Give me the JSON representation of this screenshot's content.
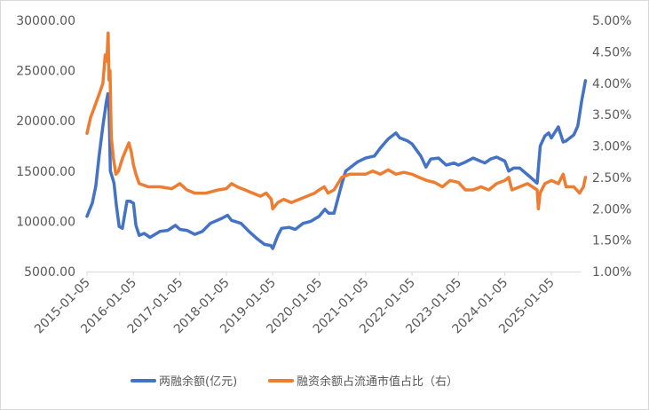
{
  "chart_data": {
    "type": "line",
    "title": "",
    "xlabel": "",
    "ylabel": "",
    "x_ticks": [
      "2015-01-05",
      "2016-01-05",
      "2017-01-05",
      "2018-01-05",
      "2019-01-05",
      "2020-01-05",
      "2021-01-05",
      "2022-01-05",
      "2023-01-05",
      "2024-01-05",
      "2025-01-05"
    ],
    "y_left_ticks": [
      "5000.00",
      "10000.00",
      "15000.00",
      "20000.00",
      "25000.00",
      "30000.00"
    ],
    "y_right_ticks": [
      "1.00%",
      "1.50%",
      "2.00%",
      "2.50%",
      "3.00%",
      "3.50%",
      "4.00%",
      "4.50%",
      "5.00%"
    ],
    "ylim_left": [
      5000,
      30000
    ],
    "ylim_right": [
      1.0,
      5.0
    ],
    "grid": false,
    "legend_position": "bottom",
    "series": [
      {
        "name": "两融余额(亿元)",
        "axis": "left",
        "color": "#4472C4",
        "points": [
          [
            "2015-01-05",
            10500
          ],
          [
            "2015-02-15",
            11800
          ],
          [
            "2015-03-15",
            13500
          ],
          [
            "2015-04-10",
            16500
          ],
          [
            "2015-05-10",
            19500
          ],
          [
            "2015-06-05",
            21800
          ],
          [
            "2015-06-18",
            22700
          ],
          [
            "2015-06-28",
            21000
          ],
          [
            "2015-07-08",
            15000
          ],
          [
            "2015-07-20",
            14500
          ],
          [
            "2015-08-05",
            13800
          ],
          [
            "2015-08-25",
            11500
          ],
          [
            "2015-09-15",
            9500
          ],
          [
            "2015-10-10",
            9300
          ],
          [
            "2015-11-15",
            12000
          ],
          [
            "2015-12-10",
            12000
          ],
          [
            "2016-01-05",
            11800
          ],
          [
            "2016-01-25",
            9600
          ],
          [
            "2016-02-20",
            8600
          ],
          [
            "2016-03-30",
            8800
          ],
          [
            "2016-05-15",
            8400
          ],
          [
            "2016-08-01",
            9000
          ],
          [
            "2016-10-01",
            9100
          ],
          [
            "2016-12-01",
            9600
          ],
          [
            "2017-01-05",
            9200
          ],
          [
            "2017-03-01",
            9100
          ],
          [
            "2017-05-01",
            8700
          ],
          [
            "2017-07-01",
            9000
          ],
          [
            "2017-09-01",
            9800
          ],
          [
            "2017-12-01",
            10300
          ],
          [
            "2018-01-15",
            10600
          ],
          [
            "2018-02-15",
            10100
          ],
          [
            "2018-05-01",
            9800
          ],
          [
            "2018-07-01",
            9000
          ],
          [
            "2018-09-01",
            8300
          ],
          [
            "2018-11-01",
            7700
          ],
          [
            "2018-12-20",
            7600
          ],
          [
            "2019-01-05",
            7300
          ],
          [
            "2019-02-15",
            8600
          ],
          [
            "2019-03-15",
            9300
          ],
          [
            "2019-05-15",
            9400
          ],
          [
            "2019-07-01",
            9200
          ],
          [
            "2019-09-01",
            9800
          ],
          [
            "2019-11-01",
            10000
          ],
          [
            "2020-01-05",
            10500
          ],
          [
            "2020-02-20",
            11200
          ],
          [
            "2020-03-20",
            10800
          ],
          [
            "2020-05-01",
            10800
          ],
          [
            "2020-07-01",
            13700
          ],
          [
            "2020-08-01",
            15000
          ],
          [
            "2020-11-01",
            15900
          ],
          [
            "2021-01-05",
            16300
          ],
          [
            "2021-03-15",
            16500
          ],
          [
            "2021-05-01",
            17300
          ],
          [
            "2021-07-01",
            18200
          ],
          [
            "2021-09-01",
            18800
          ],
          [
            "2021-10-01",
            18300
          ],
          [
            "2021-12-01",
            18000
          ],
          [
            "2022-01-05",
            17700
          ],
          [
            "2022-03-15",
            16500
          ],
          [
            "2022-04-25",
            15400
          ],
          [
            "2022-06-01",
            16200
          ],
          [
            "2022-08-01",
            16300
          ],
          [
            "2022-10-01",
            15600
          ],
          [
            "2022-12-01",
            15800
          ],
          [
            "2023-01-05",
            15600
          ],
          [
            "2023-03-01",
            15900
          ],
          [
            "2023-05-01",
            16300
          ],
          [
            "2023-08-01",
            15800
          ],
          [
            "2023-09-15",
            16200
          ],
          [
            "2023-11-01",
            16400
          ],
          [
            "2024-01-05",
            16000
          ],
          [
            "2024-02-05",
            15000
          ],
          [
            "2024-03-15",
            15300
          ],
          [
            "2024-05-01",
            15300
          ],
          [
            "2024-07-15",
            14500
          ],
          [
            "2024-09-15",
            13800
          ],
          [
            "2024-10-10",
            17500
          ],
          [
            "2024-11-15",
            18500
          ],
          [
            "2024-12-15",
            18800
          ],
          [
            "2025-01-05",
            18300
          ],
          [
            "2025-03-01",
            19400
          ],
          [
            "2025-04-08",
            17900
          ],
          [
            "2025-05-01",
            18000
          ],
          [
            "2025-07-01",
            18600
          ],
          [
            "2025-08-01",
            19500
          ],
          [
            "2025-09-01",
            22000
          ],
          [
            "2025-09-30",
            24000
          ]
        ]
      },
      {
        "name": "融资余额占流通市值占比（右）",
        "axis": "right",
        "color": "#ED7D31",
        "points": [
          [
            "2015-01-05",
            3.2
          ],
          [
            "2015-02-01",
            3.45
          ],
          [
            "2015-03-01",
            3.6
          ],
          [
            "2015-04-15",
            3.85
          ],
          [
            "2015-05-10",
            4.0
          ],
          [
            "2015-05-28",
            4.45
          ],
          [
            "2015-06-10",
            4.35
          ],
          [
            "2015-06-20",
            4.8
          ],
          [
            "2015-06-27",
            4.05
          ],
          [
            "2015-07-05",
            4.2
          ],
          [
            "2015-07-15",
            3.15
          ],
          [
            "2015-08-01",
            2.8
          ],
          [
            "2015-08-20",
            2.55
          ],
          [
            "2015-09-10",
            2.6
          ],
          [
            "2015-10-10",
            2.8
          ],
          [
            "2015-11-10",
            2.95
          ],
          [
            "2015-12-01",
            3.05
          ],
          [
            "2015-12-20",
            2.9
          ],
          [
            "2016-01-05",
            2.7
          ],
          [
            "2016-01-25",
            2.55
          ],
          [
            "2016-02-20",
            2.4
          ],
          [
            "2016-05-01",
            2.35
          ],
          [
            "2016-08-01",
            2.35
          ],
          [
            "2016-11-01",
            2.32
          ],
          [
            "2017-01-05",
            2.4
          ],
          [
            "2017-03-01",
            2.3
          ],
          [
            "2017-05-01",
            2.25
          ],
          [
            "2017-08-01",
            2.25
          ],
          [
            "2017-11-01",
            2.3
          ],
          [
            "2018-01-05",
            2.32
          ],
          [
            "2018-02-15",
            2.4
          ],
          [
            "2018-04-01",
            2.35
          ],
          [
            "2018-06-01",
            2.3
          ],
          [
            "2018-08-01",
            2.25
          ],
          [
            "2018-10-01",
            2.2
          ],
          [
            "2018-11-15",
            2.25
          ],
          [
            "2018-12-25",
            2.15
          ],
          [
            "2019-01-05",
            2.0
          ],
          [
            "2019-02-15",
            2.1
          ],
          [
            "2019-04-01",
            2.15
          ],
          [
            "2019-06-01",
            2.1
          ],
          [
            "2019-08-01",
            2.15
          ],
          [
            "2019-10-01",
            2.2
          ],
          [
            "2019-12-01",
            2.25
          ],
          [
            "2020-01-05",
            2.3
          ],
          [
            "2020-02-15",
            2.35
          ],
          [
            "2020-03-15",
            2.25
          ],
          [
            "2020-05-01",
            2.3
          ],
          [
            "2020-07-01",
            2.5
          ],
          [
            "2020-09-01",
            2.55
          ],
          [
            "2020-11-01",
            2.55
          ],
          [
            "2021-01-05",
            2.55
          ],
          [
            "2021-03-01",
            2.6
          ],
          [
            "2021-05-01",
            2.55
          ],
          [
            "2021-07-01",
            2.62
          ],
          [
            "2021-09-01",
            2.55
          ],
          [
            "2021-11-01",
            2.58
          ],
          [
            "2022-01-05",
            2.55
          ],
          [
            "2022-03-01",
            2.5
          ],
          [
            "2022-05-01",
            2.45
          ],
          [
            "2022-07-01",
            2.42
          ],
          [
            "2022-09-01",
            2.35
          ],
          [
            "2022-11-01",
            2.45
          ],
          [
            "2023-01-05",
            2.42
          ],
          [
            "2023-03-01",
            2.3
          ],
          [
            "2023-05-01",
            2.3
          ],
          [
            "2023-07-01",
            2.35
          ],
          [
            "2023-09-01",
            2.3
          ],
          [
            "2023-11-01",
            2.4
          ],
          [
            "2024-01-05",
            2.45
          ],
          [
            "2024-02-05",
            2.5
          ],
          [
            "2024-03-01",
            2.3
          ],
          [
            "2024-05-01",
            2.35
          ],
          [
            "2024-07-01",
            2.4
          ],
          [
            "2024-09-15",
            2.3
          ],
          [
            "2024-09-25",
            2.0
          ],
          [
            "2024-10-08",
            2.25
          ],
          [
            "2024-11-15",
            2.4
          ],
          [
            "2025-01-05",
            2.45
          ],
          [
            "2025-03-01",
            2.4
          ],
          [
            "2025-04-08",
            2.55
          ],
          [
            "2025-05-01",
            2.35
          ],
          [
            "2025-07-01",
            2.35
          ],
          [
            "2025-08-15",
            2.25
          ],
          [
            "2025-09-15",
            2.35
          ],
          [
            "2025-09-30",
            2.5
          ]
        ]
      }
    ]
  }
}
